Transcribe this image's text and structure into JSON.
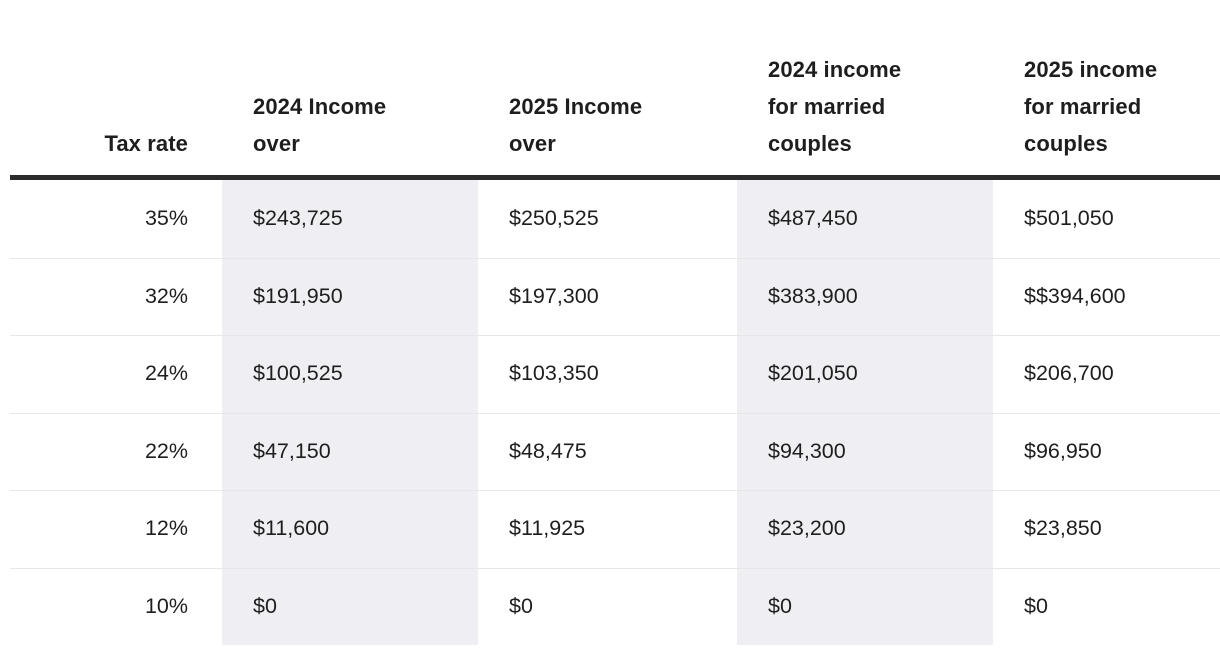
{
  "chart_data": {
    "type": "table",
    "columns": [
      "Tax rate",
      "2024 Income over",
      "2025 Income over",
      "2024 income for married couples",
      "2025 income for married couples"
    ],
    "rows": [
      [
        "35%",
        "$243,725",
        "$250,525",
        "$487,450",
        "$501,050"
      ],
      [
        "32%",
        "$191,950",
        "$197,300",
        "$383,900",
        "$$394,600"
      ],
      [
        "24%",
        "$100,525",
        "$103,350",
        "$201,050",
        "$206,700"
      ],
      [
        "22%",
        "$47,150",
        "$48,475",
        "$94,300",
        "$96,950"
      ],
      [
        "12%",
        "$11,600",
        "$11,925",
        "$23,200",
        "$23,850"
      ],
      [
        "10%",
        "$0",
        "$0",
        "$0",
        "$0"
      ]
    ],
    "layout": {
      "shaded_column_indexes": [
        1,
        3
      ],
      "header_alignment": "bottom-left",
      "first_column_alignment": "right",
      "value_columns_alignment": "left",
      "grid": "horizontal-dividers-only"
    }
  },
  "colors": {
    "background": "#ffffff",
    "column_shade": "#efeef3",
    "heavy_rule": "#2b2b2b",
    "row_divider": "#e7e7e7",
    "text": "#1e1e1e"
  }
}
